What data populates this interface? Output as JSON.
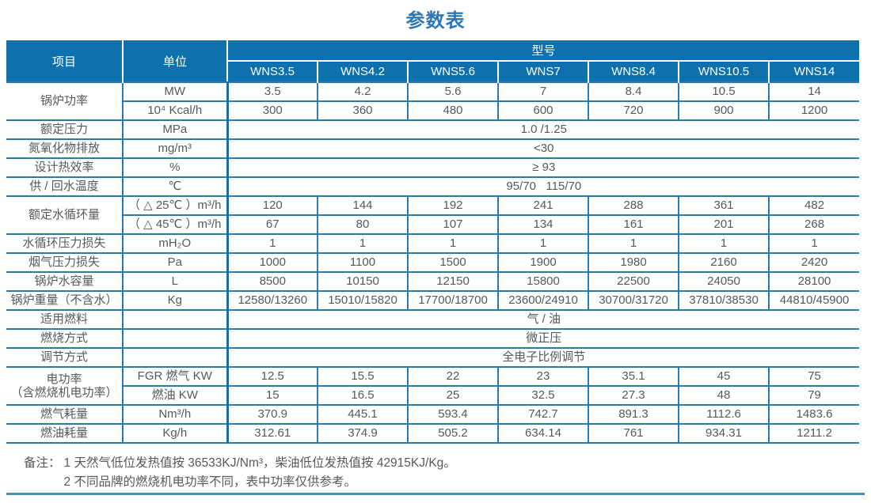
{
  "title": "参数表",
  "colors": {
    "header_bg": "#0F70AE",
    "grid_line": "#2B7AB8",
    "unit_divider": "#1A6BA9",
    "body_text": "#57585B",
    "title_text": "#2E77B6",
    "bottom_rule": "#4C8DB3"
  },
  "table": {
    "corner_item": "项目",
    "corner_unit": "单位",
    "model_group": "型号",
    "models": [
      "WNS3.5",
      "WNS4.2",
      "WNS5.6",
      "WNS7",
      "WNS8.4",
      "WNS10.5",
      "WNS14"
    ],
    "rows": [
      {
        "item": "锅炉功率",
        "rowspan": 2,
        "unit": "MW",
        "values": [
          "3.5",
          "4.2",
          "5.6",
          "7",
          "8.4",
          "10.5",
          "14"
        ]
      },
      {
        "unit": "10⁴ Kcal/h",
        "values": [
          "300",
          "360",
          "480",
          "600",
          "720",
          "900",
          "1200"
        ]
      },
      {
        "item": "额定压力",
        "unit": "MPa",
        "merged": "1.0 /1.25"
      },
      {
        "item": "氮氧化物排放",
        "unit": "mg/m³",
        "merged": "<30"
      },
      {
        "item": "设计热效率",
        "unit": "%",
        "merged": "≥ 93"
      },
      {
        "item": "供 / 回水温度",
        "unit": "℃",
        "merged": "95/70   115/70"
      },
      {
        "item": "额定水循环量",
        "rowspan": 2,
        "unit": "（ △ 25℃ ）m³/h",
        "values": [
          "120",
          "144",
          "192",
          "241",
          "288",
          "361",
          "482"
        ]
      },
      {
        "unit": "（ △ 45℃ ）m³/h",
        "values": [
          "67",
          "80",
          "107",
          "134",
          "161",
          "201",
          "268"
        ]
      },
      {
        "item": "水循环压力损失",
        "unit": "mH₂O",
        "values": [
          "1",
          "1",
          "1",
          "1",
          "1",
          "1",
          "1"
        ]
      },
      {
        "item": "烟气压力损失",
        "unit": "Pa",
        "values": [
          "1000",
          "1100",
          "1500",
          "1900",
          "1980",
          "2160",
          "2420"
        ]
      },
      {
        "item": "锅炉水容量",
        "unit": "L",
        "values": [
          "8500",
          "10150",
          "12150",
          "15800",
          "22500",
          "24050",
          "28100"
        ]
      },
      {
        "item": "锅炉重量（不含水）",
        "unit": "Kg",
        "values": [
          "12580/13260",
          "15010/15820",
          "17700/18700",
          "23600/24910",
          "30700/31720",
          "37810/38530",
          "44810/45900"
        ]
      },
      {
        "item": "适用燃料",
        "unit": "",
        "merged": "气 / 油"
      },
      {
        "item": "燃烧方式",
        "unit": "",
        "merged": "微正压"
      },
      {
        "item": "调节方式",
        "unit": "",
        "merged": "全电子比例调节"
      },
      {
        "item": "电功率\n（含燃烧机电功率）",
        "rowspan": 2,
        "unit": "FGR 燃气 KW",
        "values": [
          "12.5",
          "15.5",
          "22",
          "23",
          "35.1",
          "45",
          "75"
        ]
      },
      {
        "unit": "燃油 KW",
        "values": [
          "15",
          "16.5",
          "25",
          "32.5",
          "27.3",
          "48",
          "79"
        ]
      },
      {
        "item": "燃气耗量",
        "unit": "Nm³/h",
        "values": [
          "370.9",
          "445.1",
          "593.4",
          "742.7",
          "891.3",
          "1112.6",
          "1483.6"
        ]
      },
      {
        "item": "燃油耗量",
        "unit": "Kg/h",
        "values": [
          "312.61",
          "374.9",
          "505.2",
          "634.14",
          "761",
          "934.31",
          "1211.2"
        ]
      }
    ]
  },
  "notes": {
    "label": "备注：",
    "items": [
      "1  天然气低位发热值按 36533KJ/Nm³，柴油低位发热值按 42915KJ/Kg。",
      "2  不同品牌的燃烧机电功率不同，表中功率仅供参考。"
    ]
  }
}
